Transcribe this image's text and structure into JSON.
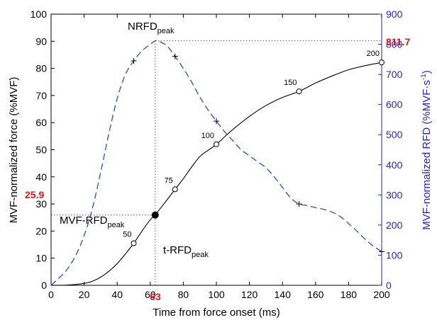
{
  "chart_data": {
    "type": "line",
    "xlabel": "Time from force onset (ms)",
    "ylabel_left": "MVF-normalized force (%MVF)",
    "ylabel_right_main": "MVF-normalized RFD (%MVF",
    "ylabel_right_sep": "·",
    "ylabel_right_unit": "s",
    "ylabel_right_exp": "-1",
    "ylabel_right_close": ")",
    "xlim": [
      0,
      200
    ],
    "ylim_left": [
      0,
      100
    ],
    "ylim_right": [
      0,
      900
    ],
    "x_ticks": [
      0,
      20,
      40,
      60,
      80,
      100,
      120,
      140,
      160,
      180,
      200
    ],
    "y_ticks_left": [
      0,
      10,
      20,
      30,
      40,
      50,
      60,
      70,
      80,
      90,
      100
    ],
    "y_ticks_right": [
      0,
      100,
      200,
      300,
      400,
      500,
      600,
      700,
      800,
      900
    ],
    "series": [
      {
        "axis": "left",
        "color": "#000000",
        "style": "solid",
        "x": [
          0,
          10,
          20,
          25,
          30,
          35,
          40,
          45,
          50,
          55,
          60,
          63,
          65,
          70,
          75,
          80,
          85,
          90,
          95,
          100,
          110,
          120,
          130,
          140,
          150,
          160,
          170,
          180,
          190,
          200
        ],
        "y": [
          0,
          0.1,
          0.7,
          1.5,
          3.0,
          5.2,
          8.0,
          11.6,
          15.5,
          20.0,
          24.2,
          25.9,
          27.5,
          31.4,
          35.4,
          39.3,
          43.6,
          47.5,
          49.8,
          52.0,
          57.5,
          62.3,
          66.3,
          69.3,
          71.5,
          74.6,
          77.2,
          79.5,
          81.0,
          82.2
        ]
      },
      {
        "axis": "right",
        "color": "#1f4fe0",
        "style": "dashed",
        "x": [
          0,
          5,
          10,
          15,
          20,
          25,
          30,
          35,
          40,
          45,
          50,
          55,
          60,
          63,
          65,
          70,
          75,
          80,
          85,
          90,
          95,
          100,
          105,
          110,
          115,
          120,
          125,
          130,
          135,
          140,
          145,
          150,
          155,
          160,
          165,
          170,
          175,
          180,
          185,
          190,
          195,
          200
        ],
        "y": [
          0,
          25,
          55,
          100,
          165,
          255,
          375,
          505,
          620,
          700,
          745,
          778,
          800,
          811.7,
          810,
          795,
          760,
          720,
          675,
          625,
          582,
          545,
          510,
          480,
          450,
          430,
          410,
          390,
          360,
          325,
          290,
          270,
          265,
          258,
          252,
          243,
          228,
          205,
          180,
          153,
          130,
          112
        ]
      }
    ],
    "markers_left": [
      {
        "x": 50,
        "y": 15.5,
        "label": "50"
      },
      {
        "x": 75,
        "y": 35.4,
        "label": "75"
      },
      {
        "x": 100,
        "y": 52.0,
        "label": "100"
      },
      {
        "x": 150,
        "y": 71.5,
        "label": "150"
      },
      {
        "x": 200,
        "y": 82.2,
        "label": "200"
      }
    ],
    "markers_right": [
      {
        "x": 50,
        "y": 745
      },
      {
        "x": 75,
        "y": 760
      },
      {
        "x": 100,
        "y": 545
      },
      {
        "x": 150,
        "y": 270
      },
      {
        "x": 200,
        "y": 112
      }
    ],
    "peak_point": {
      "x": 63,
      "y": 25.9
    },
    "annotations": {
      "nrfd_main": "NRFD",
      "nrfd_sub": "peak",
      "mvf_main": "MVF-RFD",
      "mvf_sub": "peak",
      "trfd_main": "t-RFD",
      "trfd_sub": "peak",
      "peak_time": "63",
      "peak_force": "25.9",
      "peak_rfd": "811.7"
    }
  }
}
